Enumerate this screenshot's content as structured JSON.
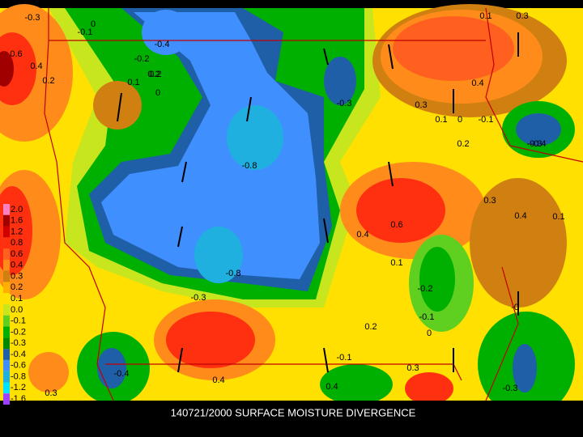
{
  "title": "140721/2000 SURFACE MOISTURE DIVERGENCE",
  "legend": [
    {
      "label": "2.0",
      "color": "#ff80c0"
    },
    {
      "label": "1.6",
      "color": "#a00000"
    },
    {
      "label": "1.2",
      "color": "#d00000"
    },
    {
      "label": "0.8",
      "color": "#ff3010"
    },
    {
      "label": "0.6",
      "color": "#ff6020"
    },
    {
      "label": "0.4",
      "color": "#ff8c1a"
    },
    {
      "label": "0.3",
      "color": "#d08010"
    },
    {
      "label": "0.2",
      "color": "#ffb000"
    },
    {
      "label": "0.1",
      "color": "#ffe000"
    },
    {
      "label": "0.0",
      "color": "#c8e61e"
    },
    {
      "label": "-0.1",
      "color": "#60d020"
    },
    {
      "label": "-0.2",
      "color": "#00b000"
    },
    {
      "label": "-0.3",
      "color": "#008800"
    },
    {
      "label": "-0.4",
      "color": "#1f5fa8"
    },
    {
      "label": "-0.6",
      "color": "#3f8fff"
    },
    {
      "label": "-0.8",
      "color": "#20b0e0"
    },
    {
      "label": "-1.2",
      "color": "#00e0ff"
    },
    {
      "label": "-1.6",
      "color": "#a040ff"
    }
  ],
  "contour_labels": [
    "-0.3",
    "-0.1",
    "0",
    "0.6",
    "0.4",
    "0.2",
    "-0.2",
    "0.1",
    "0.2",
    "-0.3",
    "-0.4",
    "0.2",
    "0",
    "-0.8",
    "-0.8",
    "-0.3",
    "0.3",
    "0.4",
    "0.1",
    "0",
    "-0.1",
    "0.2",
    "-0.3",
    "0.1",
    "0.3",
    "0.6",
    "0.4",
    "0.3",
    "0.4",
    "0.1",
    "-0.2",
    "-0.1",
    "0",
    "0.2",
    "-0",
    "-0.1",
    "-0.4",
    "0.4",
    "-0.3",
    "0.1",
    "0.3",
    "-0.4",
    "0.4",
    "0.3"
  ]
}
